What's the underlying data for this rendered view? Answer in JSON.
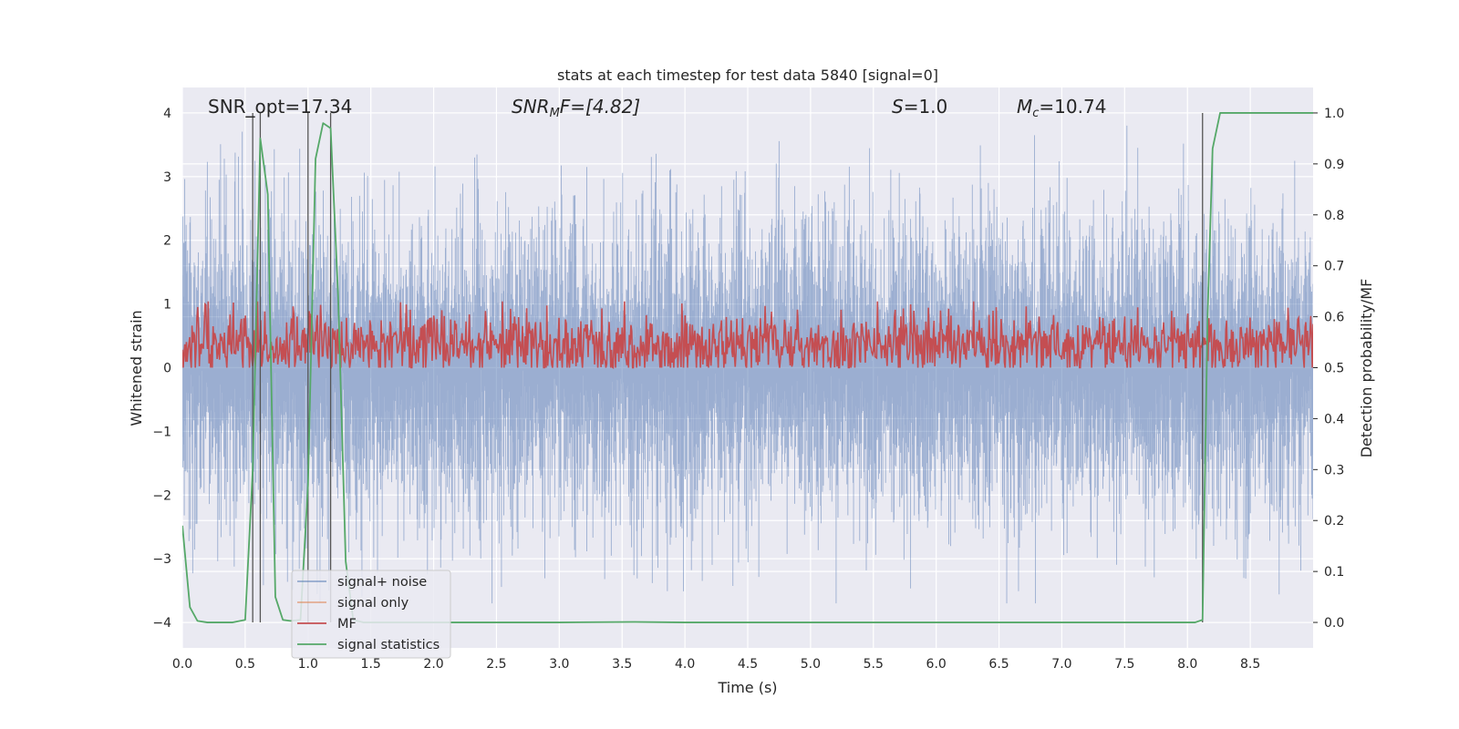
{
  "chart_data": {
    "type": "line",
    "title": "stats at each timestep for test data 5840 [signal=0]",
    "xlabel": "Time (s)",
    "ylabel": "Whitened strain",
    "ylabel_right": "Detection probability/MF",
    "xlim": [
      0,
      9.0
    ],
    "ylim": [
      -4.4,
      4.4
    ],
    "ylim_right": [
      -0.05,
      1.05
    ],
    "x_ticks": [
      "0.0",
      "0.5",
      "1.0",
      "1.5",
      "2.0",
      "2.5",
      "3.0",
      "3.5",
      "4.0",
      "4.5",
      "5.0",
      "5.5",
      "6.0",
      "6.5",
      "7.0",
      "7.5",
      "8.0",
      "8.5"
    ],
    "y_ticks": [
      "4",
      "3",
      "2",
      "1",
      "0",
      "−1",
      "−2",
      "−3",
      "−4"
    ],
    "y_ticks_right": [
      "1.0",
      "0.9",
      "0.8",
      "0.7",
      "0.6",
      "0.5",
      "0.4",
      "0.3",
      "0.2",
      "0.1",
      "0.0"
    ],
    "grid": true,
    "legend_position": "lower-left",
    "annotations": {
      "snr_opt": "SNR_opt=17.34",
      "snr_mf_base": "SNR",
      "snr_mf_sub": "M",
      "snr_mf_rest": "F=[4.82]",
      "s_var": "S",
      "s_val": "=1.0",
      "mc_var": "M",
      "mc_sub": "c",
      "mc_val": "=10.74"
    },
    "series": [
      {
        "name": "signal+ noise",
        "color": "#4c72b0",
        "axis": "left",
        "envelope": {
          "typical_abs": 1.8,
          "max": 3.8,
          "min": -3.7
        }
      },
      {
        "name": "signal only",
        "color": "#dd8452",
        "axis": "left",
        "values": []
      },
      {
        "name": "MF",
        "color": "#c44e52",
        "axis": "right",
        "range": [
          0.5,
          0.63
        ]
      },
      {
        "name": "signal statistics",
        "color": "#55a868",
        "axis": "right",
        "x": [
          0.0,
          0.06,
          0.12,
          0.2,
          0.3,
          0.4,
          0.5,
          0.56,
          0.62,
          0.68,
          0.74,
          0.8,
          0.86,
          0.94,
          1.0,
          1.06,
          1.12,
          1.18,
          1.24,
          1.3,
          1.36,
          1.44,
          1.6,
          2.0,
          3.0,
          3.6,
          4.0,
          5.0,
          6.0,
          7.0,
          7.6,
          8.0,
          8.06,
          8.12,
          8.16,
          8.2,
          8.26,
          8.4,
          8.6,
          8.8,
          9.0
        ],
        "y": [
          0.19,
          0.03,
          0.003,
          0.0,
          0.0,
          0.0,
          0.005,
          0.3,
          0.95,
          0.84,
          0.05,
          0.005,
          0.003,
          0.005,
          0.27,
          0.91,
          0.98,
          0.97,
          0.64,
          0.12,
          0.005,
          0.0,
          0.0,
          0.0,
          0.0,
          0.001,
          0.0,
          0.0,
          0.0,
          0.0,
          0.0,
          0.0,
          0.0,
          0.005,
          0.6,
          0.93,
          1.0,
          1.0,
          1.0,
          1.0,
          1.0
        ]
      }
    ],
    "vertical_markers_x": [
      0.56,
      0.62,
      1.0,
      1.18,
      8.12
    ]
  }
}
